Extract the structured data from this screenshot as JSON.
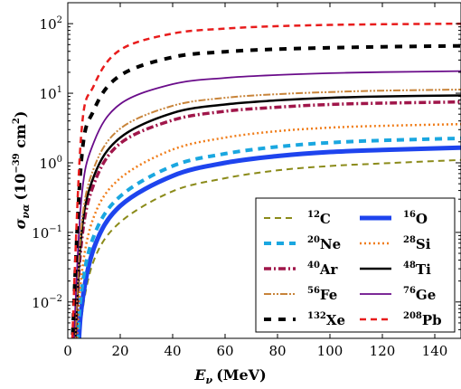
{
  "chart_data": {
    "type": "line",
    "xlabel": "E_ν (MeV)",
    "ylabel": "σ_να (10^−39 cm²)",
    "xlim": [
      0,
      150
    ],
    "ylim": [
      0.003,
      200
    ],
    "yscale": "log",
    "grid": false,
    "legend_position": "bottom-right",
    "x_ticks": [
      0,
      20,
      40,
      60,
      80,
      100,
      120,
      140
    ],
    "y_ticks": [
      {
        "value": 0.01,
        "base": "10",
        "exp": "−2"
      },
      {
        "value": 0.1,
        "base": "10",
        "exp": "−1"
      },
      {
        "value": 1,
        "base": "10",
        "exp": "0"
      },
      {
        "value": 10,
        "base": "10",
        "exp": "1"
      },
      {
        "value": 100,
        "base": "10",
        "exp": "2"
      }
    ],
    "series": [
      {
        "name": "12C",
        "mass": "12",
        "element": "C",
        "color": "#8b8b1a",
        "dash": "7,5",
        "width": 2,
        "x0": 3.5,
        "x": [
          5,
          10,
          20,
          40,
          60,
          80,
          100,
          120,
          150
        ],
        "values": [
          0.005,
          0.04,
          0.14,
          0.39,
          0.6,
          0.78,
          0.9,
          0.98,
          1.1
        ]
      },
      {
        "name": "16O",
        "mass": "16",
        "element": "O",
        "color": "#1e44ee",
        "dash": "",
        "width": 5,
        "x0": 3.5,
        "x": [
          5,
          10,
          20,
          40,
          60,
          80,
          100,
          120,
          150
        ],
        "values": [
          0.007,
          0.06,
          0.24,
          0.65,
          1.0,
          1.25,
          1.43,
          1.53,
          1.65
        ]
      },
      {
        "name": "20Ne",
        "mass": "20",
        "element": "Ne",
        "color": "#1aa7e0",
        "dash": "8,6",
        "width": 4,
        "x0": 3,
        "x": [
          5,
          10,
          20,
          40,
          60,
          80,
          100,
          120,
          150
        ],
        "values": [
          0.012,
          0.09,
          0.33,
          0.9,
          1.35,
          1.7,
          1.95,
          2.1,
          2.25
        ]
      },
      {
        "name": "28Si",
        "mass": "28",
        "element": "Si",
        "color": "#f07d1a",
        "dash": "2,3",
        "width": 2.5,
        "x0": 2.5,
        "x": [
          5,
          10,
          20,
          40,
          60,
          80,
          100,
          120,
          150
        ],
        "values": [
          0.02,
          0.17,
          0.6,
          1.55,
          2.3,
          2.85,
          3.2,
          3.4,
          3.6
        ]
      },
      {
        "name": "40Ar",
        "mass": "40",
        "element": "Ar",
        "color": "#a0164a",
        "dash": "8,3,2,3",
        "width": 3.5,
        "x0": 2,
        "x": [
          5,
          10,
          20,
          40,
          60,
          80,
          100,
          120,
          150
        ],
        "values": [
          0.06,
          0.5,
          1.9,
          4.1,
          5.5,
          6.3,
          6.9,
          7.2,
          7.5
        ]
      },
      {
        "name": "48Ti",
        "mass": "48",
        "element": "Ti",
        "color": "#000000",
        "dash": "",
        "width": 2.5,
        "x0": 2,
        "x": [
          5,
          10,
          20,
          40,
          60,
          80,
          100,
          120,
          150
        ],
        "values": [
          0.08,
          0.65,
          2.3,
          5.2,
          6.9,
          7.9,
          8.6,
          9.0,
          9.3
        ]
      },
      {
        "name": "56Fe",
        "mass": "56",
        "element": "Fe",
        "color": "#c8843a",
        "dash": "8,2,2,2,2,2",
        "width": 2,
        "x0": 2,
        "x": [
          5,
          10,
          20,
          40,
          60,
          80,
          100,
          120,
          150
        ],
        "values": [
          0.1,
          0.85,
          3.1,
          6.6,
          8.6,
          9.7,
          10.4,
          10.9,
          11.3
        ]
      },
      {
        "name": "76Ge",
        "mass": "76",
        "element": "Ge",
        "color": "#6a0c8a",
        "dash": "",
        "width": 1.8,
        "x0": 1.5,
        "x": [
          5,
          10,
          20,
          40,
          60,
          80,
          100,
          120,
          150
        ],
        "values": [
          0.25,
          2.0,
          7.0,
          13.5,
          16.6,
          18.3,
          19.4,
          20.1,
          20.8
        ]
      },
      {
        "name": "132Xe",
        "mass": "132",
        "element": "Xe",
        "color": "#000000",
        "dash": "8,8",
        "width": 4,
        "x0": 1,
        "x": [
          5,
          10,
          20,
          40,
          60,
          80,
          100,
          120,
          150
        ],
        "values": [
          0.9,
          5.8,
          18,
          33,
          39.5,
          43,
          45,
          46.5,
          48
        ]
      },
      {
        "name": "208Pb",
        "mass": "208",
        "element": "Pb",
        "color": "#e81c1c",
        "dash": "7,5",
        "width": 2.5,
        "x0": 1,
        "x": [
          5,
          10,
          20,
          40,
          60,
          80,
          100,
          120,
          150
        ],
        "values": [
          2.2,
          13,
          42,
          72,
          85,
          92,
          96,
          98,
          100
        ]
      }
    ]
  },
  "axes": {
    "xlabel": {
      "symbol": "E",
      "sub": "ν",
      "unit": "(MeV)"
    },
    "ylabel": {
      "symbol": "σ",
      "sub": "να",
      "unit_open": "(10",
      "unit_exp": "−39",
      "unit_mid": " cm",
      "unit_exp2": "2",
      "unit_close": ")"
    }
  }
}
